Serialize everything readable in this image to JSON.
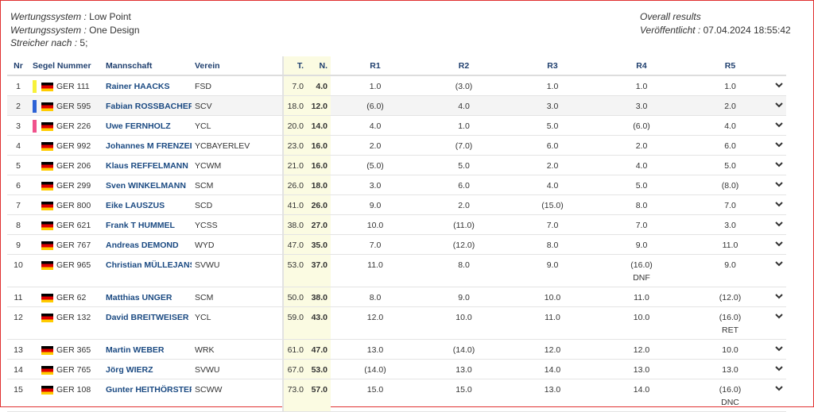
{
  "header": {
    "left": [
      {
        "label": "Wertungssystem :",
        "value": "Low Point"
      },
      {
        "label": "Wertungssystem :",
        "value": "One Design"
      },
      {
        "label": "Streicher nach :",
        "value": "5;"
      }
    ],
    "right": {
      "title": "Overall results",
      "label": "Veröffentlicht :",
      "value": "07.04.2024 18:55:42"
    }
  },
  "table": {
    "columns": [
      "Nr",
      "Segel Nummer",
      "Mannschaft",
      "Verein",
      "T.",
      "N.",
      "R1",
      "R2",
      "R3",
      "R4",
      "R5"
    ],
    "rows": [
      {
        "nr": "1",
        "marker": "#f7f13a",
        "sail": "GER 111",
        "name": "Rainer HAACKS",
        "club": "FSD",
        "total": "7.0",
        "net": "4.0",
        "races": [
          "1.0",
          "(3.0)",
          "1.0",
          "1.0",
          "1.0"
        ]
      },
      {
        "nr": "2",
        "marker": "#2d62d6",
        "sail": "GER 595",
        "name": "Fabian ROSSBACHER",
        "club": "SCV",
        "total": "18.0",
        "net": "12.0",
        "races": [
          "(6.0)",
          "4.0",
          "3.0",
          "3.0",
          "2.0"
        ]
      },
      {
        "nr": "3",
        "marker": "#f0528c",
        "sail": "GER 226",
        "name": "Uwe FERNHOLZ",
        "club": "YCL",
        "total": "20.0",
        "net": "14.0",
        "races": [
          "4.0",
          "1.0",
          "5.0",
          "(6.0)",
          "4.0"
        ]
      },
      {
        "nr": "4",
        "sail": "GER 992",
        "name": "Johannes M FRENZEL",
        "club": "YCBAYERLEV",
        "total": "23.0",
        "net": "16.0",
        "races": [
          "2.0",
          "(7.0)",
          "6.0",
          "2.0",
          "6.0"
        ]
      },
      {
        "nr": "5",
        "sail": "GER 206",
        "name": "Klaus REFFELMANN",
        "club": "YCWM",
        "total": "21.0",
        "net": "16.0",
        "races": [
          "(5.0)",
          "5.0",
          "2.0",
          "4.0",
          "5.0"
        ]
      },
      {
        "nr": "6",
        "sail": "GER 299",
        "name": "Sven WINKELMANN",
        "club": "SCM",
        "total": "26.0",
        "net": "18.0",
        "races": [
          "3.0",
          "6.0",
          "4.0",
          "5.0",
          "(8.0)"
        ]
      },
      {
        "nr": "7",
        "sail": "GER 800",
        "name": "Eike LAUSZUS",
        "club": "SCD",
        "total": "41.0",
        "net": "26.0",
        "races": [
          "9.0",
          "2.0",
          "(15.0)",
          "8.0",
          "7.0"
        ]
      },
      {
        "nr": "8",
        "sail": "GER 621",
        "name": "Frank T HUMMEL",
        "club": "YCSS",
        "total": "38.0",
        "net": "27.0",
        "races": [
          "10.0",
          "(11.0)",
          "7.0",
          "7.0",
          "3.0"
        ]
      },
      {
        "nr": "9",
        "sail": "GER 767",
        "name": "Andreas DEMOND",
        "club": "WYD",
        "total": "47.0",
        "net": "35.0",
        "races": [
          "7.0",
          "(12.0)",
          "8.0",
          "9.0",
          "11.0"
        ]
      },
      {
        "nr": "10",
        "sail": "GER 965",
        "name": "Christian MÜLLEJANS",
        "club": "SVWU",
        "total": "53.0",
        "net": "37.0",
        "races": [
          "11.0",
          "8.0",
          "9.0",
          {
            "score": "(16.0)",
            "code": "DNF"
          },
          "9.0"
        ]
      },
      {
        "nr": "11",
        "sail": "GER 62",
        "name": "Matthias UNGER",
        "club": "SCM",
        "total": "50.0",
        "net": "38.0",
        "races": [
          "8.0",
          "9.0",
          "10.0",
          "11.0",
          "(12.0)"
        ]
      },
      {
        "nr": "12",
        "sail": "GER 132",
        "name": "David BREITWEISER",
        "club": "YCL",
        "total": "59.0",
        "net": "43.0",
        "races": [
          "12.0",
          "10.0",
          "11.0",
          "10.0",
          {
            "score": "(16.0)",
            "code": "RET"
          }
        ]
      },
      {
        "nr": "13",
        "sail": "GER 365",
        "name": "Martin WEBER",
        "club": "WRK",
        "total": "61.0",
        "net": "47.0",
        "races": [
          "13.0",
          "(14.0)",
          "12.0",
          "12.0",
          "10.0"
        ]
      },
      {
        "nr": "14",
        "sail": "GER 765",
        "name": "Jörg WIERZ",
        "club": "SVWU",
        "total": "67.0",
        "net": "53.0",
        "races": [
          "(14.0)",
          "13.0",
          "14.0",
          "13.0",
          "13.0"
        ]
      },
      {
        "nr": "15",
        "sail": "GER 108",
        "name": "Gunter HEITHÖRSTER",
        "club": "SCWW",
        "total": "73.0",
        "net": "57.0",
        "races": [
          "15.0",
          "15.0",
          "13.0",
          "14.0",
          {
            "score": "(16.0)",
            "code": "DNC"
          }
        ]
      }
    ]
  }
}
